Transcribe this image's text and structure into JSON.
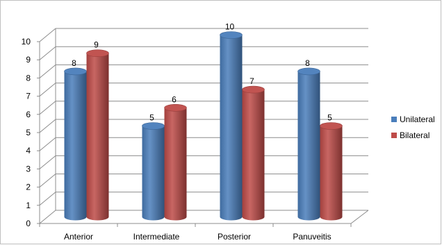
{
  "chart_data": {
    "type": "bar",
    "categories": [
      "Anterior",
      "Intermediate",
      "Posterior",
      "Panuveitis"
    ],
    "series": [
      {
        "name": "Unilateral",
        "values": [
          8,
          5,
          10,
          8
        ],
        "color": "#4a7ebb"
      },
      {
        "name": "Bilateral",
        "values": [
          9,
          6,
          7,
          5
        ],
        "color": "#be4b48"
      }
    ],
    "ylim": [
      0,
      10
    ],
    "yticks": [
      "0",
      "1",
      "2",
      "3",
      "4",
      "5",
      "6",
      "7",
      "8",
      "9",
      "10"
    ],
    "grid": true,
    "legend_position": "right",
    "style": "3d-cylinder"
  }
}
